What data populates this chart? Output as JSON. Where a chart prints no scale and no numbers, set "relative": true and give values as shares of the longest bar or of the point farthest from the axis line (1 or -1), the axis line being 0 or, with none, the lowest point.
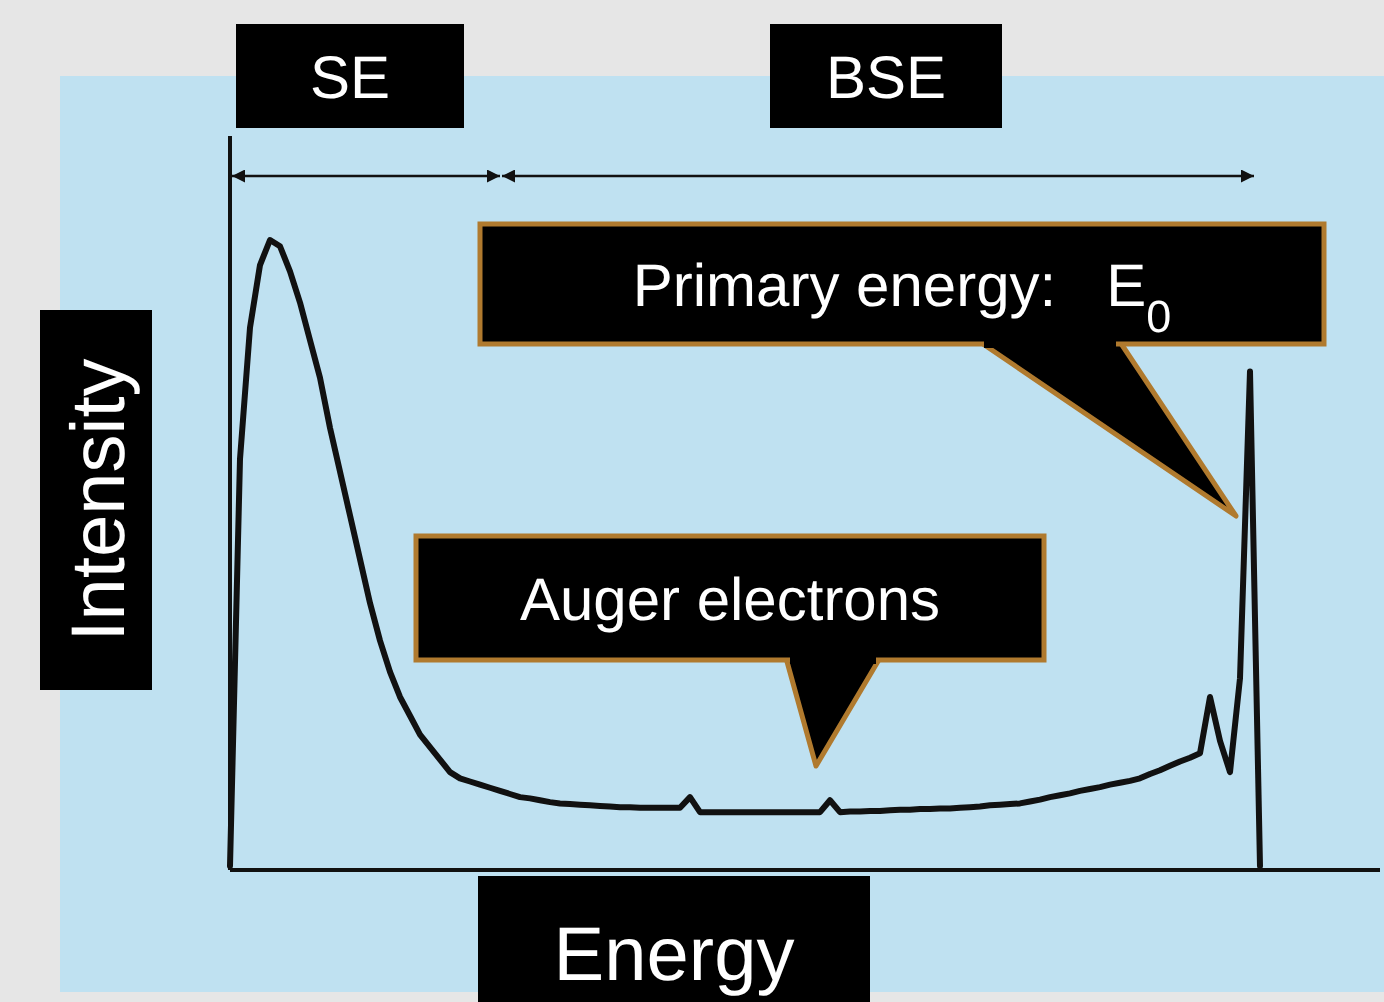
{
  "chart_data": {
    "type": "line",
    "relative": true,
    "xlabel": "Energy",
    "ylabel": "Intensity",
    "line_style": "solid",
    "categories": [
      null,
      null,
      null,
      null,
      null,
      null,
      null,
      null,
      null,
      null,
      null,
      null,
      null,
      null,
      null,
      null,
      null,
      null,
      null,
      null,
      null,
      null,
      null,
      null,
      null,
      null,
      null,
      null,
      null,
      null,
      null,
      null,
      null,
      null,
      null,
      null,
      null,
      null,
      null,
      null,
      null,
      null,
      null,
      null,
      null,
      null,
      null,
      null,
      null,
      null,
      null,
      null,
      null,
      null,
      null,
      null,
      null,
      null,
      null,
      null,
      null,
      null,
      null,
      null,
      null,
      null,
      null,
      null,
      null,
      null,
      null,
      null,
      null,
      null,
      null,
      null,
      null,
      null,
      null,
      null,
      null,
      null,
      null,
      null,
      null,
      null,
      null,
      null,
      null,
      null,
      null,
      null,
      null,
      null,
      null,
      null,
      null,
      null,
      null,
      null,
      null,
      null,
      null,
      null,
      null,
      null,
      null,
      null,
      null,
      null,
      null,
      null,
      null,
      null,
      null,
      null
    ],
    "series": [
      {
        "color": "#111111",
        "values": [
          0,
          0.65,
          0.86,
          0.96,
          1,
          0.99,
          0.95,
          0.9,
          0.84,
          0.78,
          0.7,
          0.63,
          0.56,
          0.49,
          0.42,
          0.36,
          0.31,
          0.27,
          0.24,
          0.21,
          0.19,
          0.17,
          0.15,
          0.14,
          0.135,
          0.13,
          0.125,
          0.12,
          0.115,
          0.11,
          0.108,
          0.105,
          0.102,
          0.1,
          0.099,
          0.098,
          0.097,
          0.096,
          0.095,
          0.094,
          0.094,
          0.093,
          0.093,
          0.093,
          0.093,
          0.093,
          0.11,
          0.086,
          0.086,
          0.086,
          0.086,
          0.086,
          0.086,
          0.086,
          0.086,
          0.086,
          0.086,
          0.086,
          0.086,
          0.086,
          0.105,
          0.086,
          0.087,
          0.087,
          0.088,
          0.088,
          0.089,
          0.09,
          0.09,
          0.091,
          0.091,
          0.092,
          0.092,
          0.093,
          0.094,
          0.095,
          0.097,
          0.098,
          0.099,
          0.1,
          0.103,
          0.106,
          0.11,
          0.113,
          0.116,
          0.12,
          0.123,
          0.126,
          0.13,
          0.133,
          0.136,
          0.14,
          0.147,
          0.153,
          0.16,
          0.167,
          0.173,
          0.18,
          0.27,
          0.2,
          0.15,
          0.3,
          0.79,
          0,
          null,
          null,
          null,
          null,
          null,
          null,
          null,
          null,
          null,
          null,
          null,
          null
        ]
      }
    ],
    "annotations": [
      "SE",
      "BSE",
      "Primary energy:   E$_{0}$",
      "Auger electrons"
    ]
  }
}
